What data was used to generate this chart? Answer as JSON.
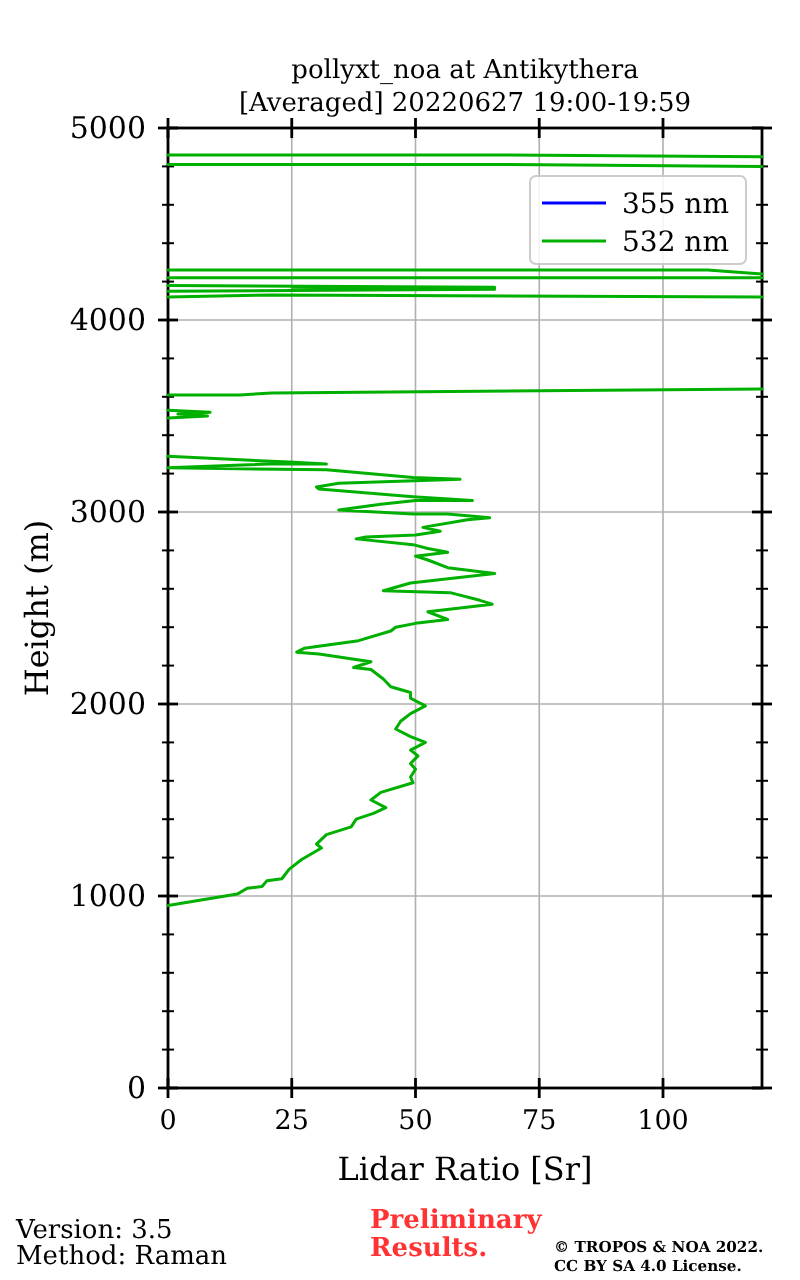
{
  "chart_data": {
    "type": "line",
    "title": "pollyxt_noa at Antikythera\n[Averaged] 20220627 19:00-19:59",
    "xlabel": "Lidar Ratio [Sr]",
    "ylabel": "Height (m)",
    "xlim": [
      0,
      120
    ],
    "xticks": [
      0,
      25,
      50,
      75,
      100
    ],
    "ylim": [
      0,
      5000
    ],
    "yticks": [
      0,
      {
        "value": 200,
        "label": null
      },
      {
        "value": 400,
        "label": null
      },
      {
        "value": 600,
        "label": null
      },
      {
        "value": 800,
        "label": null
      },
      1000,
      {
        "value": 1200,
        "label": null
      },
      {
        "value": 1400,
        "label": null
      },
      {
        "value": 1600,
        "label": null
      },
      {
        "value": 1800,
        "label": null
      },
      2000,
      {
        "value": 2200,
        "label": null
      },
      {
        "value": 2400,
        "label": null
      },
      {
        "value": 2600,
        "label": null
      },
      {
        "value": 2800,
        "label": null
      },
      3000,
      {
        "value": 3200,
        "label": null
      },
      {
        "value": 3400,
        "label": null
      },
      {
        "value": 3600,
        "label": null
      },
      {
        "value": 3800,
        "label": null
      },
      4000,
      {
        "value": 4200,
        "label": null
      },
      {
        "value": 4400,
        "label": null
      },
      {
        "value": 4600,
        "label": null
      },
      {
        "value": 4800,
        "label": null
      },
      5000
    ],
    "grid": true,
    "legend": "top right",
    "series": [
      {
        "name": "355 nm",
        "color": "#0000ff"
      },
      {
        "name": "532 nm",
        "color": "#00b000",
        "x": [
          0,
          14,
          16,
          19,
          20,
          23,
          24.5,
          27,
          31,
          30,
          32,
          37,
          38,
          41.5,
          44,
          41,
          43,
          49.5,
          49,
          50,
          49,
          50.5,
          49,
          52,
          49,
          46,
          47,
          49,
          52,
          49,
          49,
          45,
          43.5,
          41,
          37.5,
          41,
          30.5,
          26,
          27.5,
          38.5,
          45,
          46,
          50,
          56.5,
          52.5,
          65.5,
          63,
          57,
          43.5,
          49,
          66,
          56.5,
          52.5,
          50,
          56.5,
          52.5,
          49.5,
          38,
          40,
          50,
          55,
          51.5,
          60.5,
          65,
          56.5,
          49.5,
          34.5,
          43,
          50,
          61.5,
          49.5,
          30.5,
          30,
          34.5,
          59,
          49.5,
          32,
          0,
          20.5,
          32,
          24.5,
          0,
          null,
          0,
          8,
          2,
          8.5,
          0,
          null,
          0,
          14.5,
          21,
          120,
          null,
          0,
          21,
          120,
          null,
          0,
          66,
          25,
          66,
          0,
          null,
          0,
          120,
          null,
          0,
          66,
          109,
          120,
          null,
          0,
          66,
          120,
          null,
          0,
          66,
          120
        ],
        "values": [
          950,
          1010,
          1040,
          1050,
          1080,
          1090,
          1140,
          1190,
          1250,
          1270,
          1320,
          1360,
          1400,
          1430,
          1460,
          1500,
          1540,
          1590,
          1620,
          1660,
          1690,
          1730,
          1760,
          1800,
          1830,
          1870,
          1910,
          1950,
          1990,
          2030,
          2060,
          2090,
          2130,
          2180,
          2190,
          2220,
          2260,
          2270,
          2290,
          2330,
          2380,
          2400,
          2420,
          2440,
          2480,
          2520,
          2540,
          2580,
          2590,
          2630,
          2680,
          2710,
          2750,
          2770,
          2790,
          2810,
          2830,
          2860,
          2870,
          2880,
          2900,
          2920,
          2960,
          2970,
          2990,
          2990,
          3010,
          3040,
          3060,
          3060,
          3080,
          3120,
          3130,
          3150,
          3170,
          3180,
          3220,
          3230,
          3250,
          3250,
          3260,
          3290,
          null,
          3490,
          3500,
          3510,
          3520,
          3530,
          null,
          3610,
          3610,
          3620,
          3640,
          null,
          4120,
          4130,
          4120,
          null,
          4150,
          4160,
          4170,
          4170,
          4180,
          null,
          4220,
          4220,
          null,
          4260,
          4260,
          4260,
          4240,
          null,
          4810,
          4810,
          4800,
          null,
          4860,
          4860,
          4850
        ]
      }
    ],
    "annotations": [
      "Version: 3.5",
      "Method: Raman",
      "Preliminary\nResults.",
      "© TROPOS & NOA 2022.\nCC BY SA 4.0 License."
    ]
  }
}
